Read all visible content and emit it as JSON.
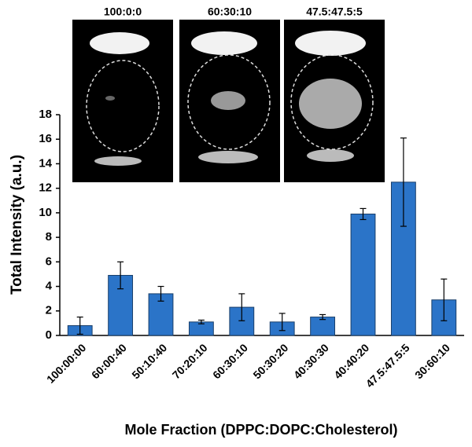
{
  "chart_data": {
    "type": "bar",
    "inset_labels": [
      "100:0:0",
      "60:30:10",
      "47.5:47.5:5"
    ],
    "ylabel": "Total Intensity (a.u.)",
    "xlabel": "Mole Fraction (DPPC:DOPC:Cholesterol)",
    "categories": [
      "100:00:00",
      "60:00:40",
      "50:10:40",
      "70:20:10",
      "60:30:10",
      "50:30:20",
      "40:30:30",
      "40:40:20",
      "47.5:47.5:5",
      "30:60:10"
    ],
    "values": [
      0.8,
      4.9,
      3.4,
      1.1,
      2.3,
      1.1,
      1.5,
      9.9,
      12.5,
      2.9
    ],
    "errors": [
      0.7,
      1.1,
      0.6,
      0.15,
      1.1,
      0.7,
      0.2,
      0.45,
      3.6,
      1.7
    ],
    "color": "#2b74c8",
    "ylim": [
      0,
      18
    ],
    "yticks": [
      0,
      2,
      4,
      6,
      8,
      10,
      12,
      14,
      16,
      18
    ]
  }
}
